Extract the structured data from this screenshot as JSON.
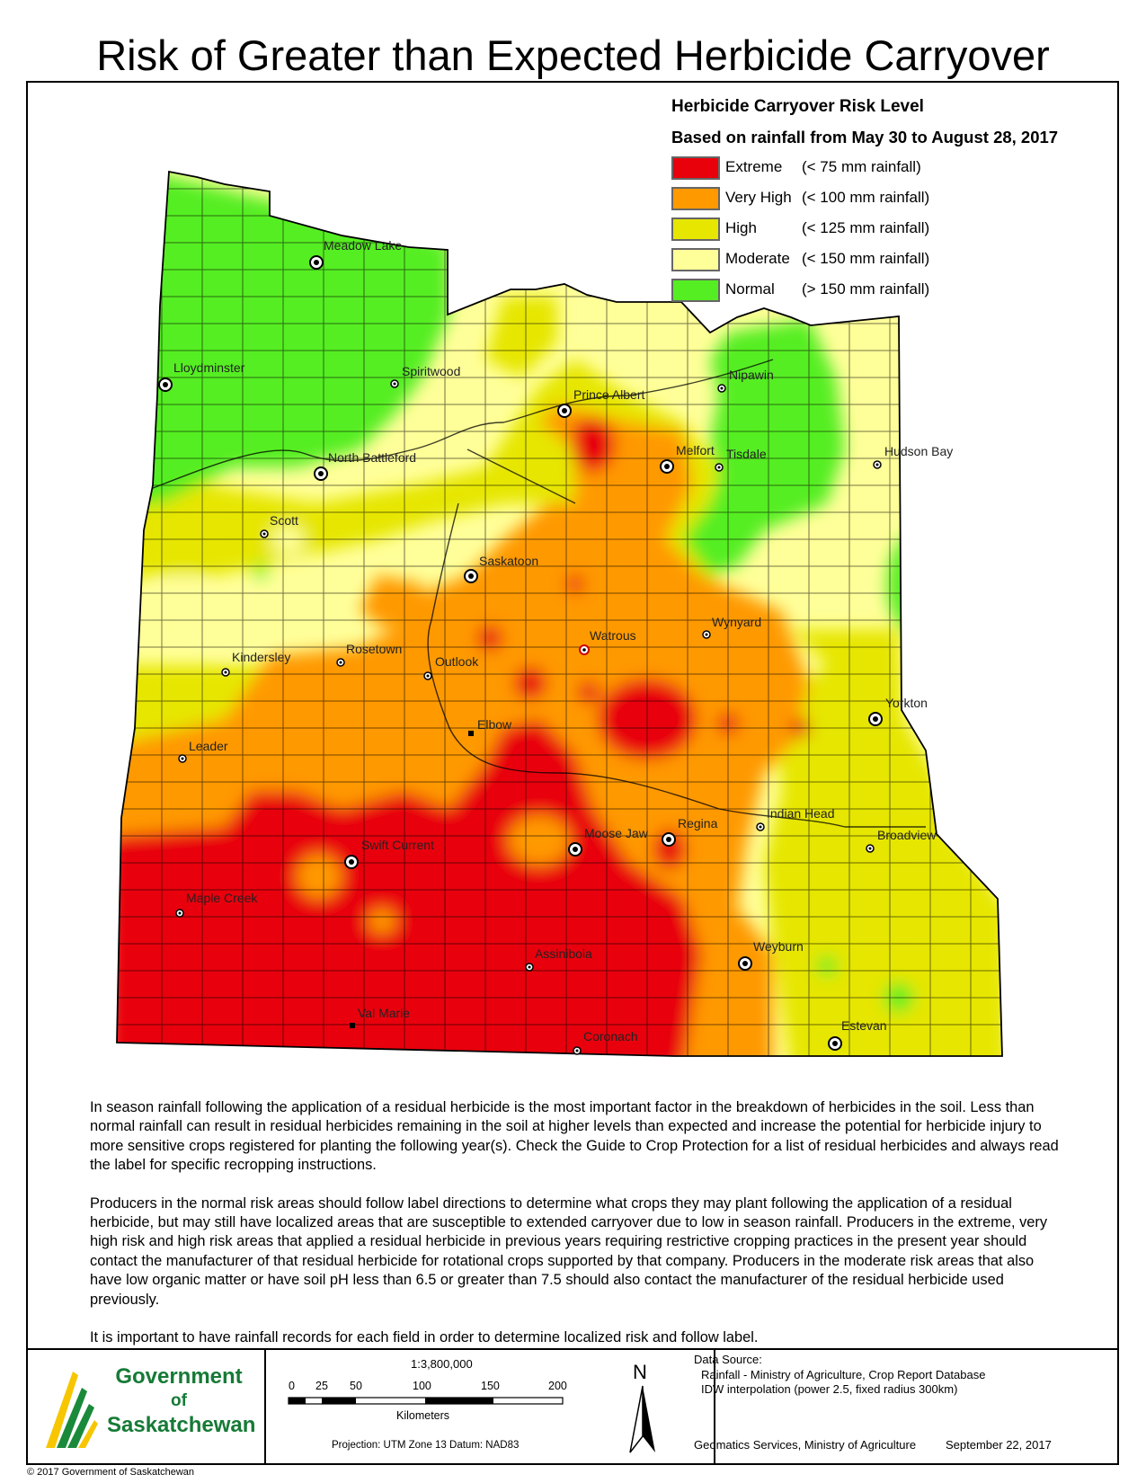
{
  "title": "Risk of Greater than Expected Herbicide Carryover",
  "legend": {
    "title": "Herbicide Carryover Risk Level",
    "subtitle": "Based on rainfall from May 30 to August 28, 2017",
    "items": [
      {
        "name": "Extreme",
        "range": "(<   75 mm rainfall)",
        "color": "#e8000b"
      },
      {
        "name": "Very High",
        "range": "(< 100 mm rainfall)",
        "color": "#ff9900"
      },
      {
        "name": "High",
        "range": "(< 125 mm rainfall)",
        "color": "#e6e600"
      },
      {
        "name": "Moderate",
        "range": "(< 150 mm rainfall)",
        "color": "#ffff99"
      },
      {
        "name": "Normal",
        "range": "(> 150 mm rainfall)",
        "color": "#55ee22"
      }
    ]
  },
  "cities": [
    {
      "name": "Meadow Lake",
      "symbol": "major"
    },
    {
      "name": "Lloydminster",
      "symbol": "major"
    },
    {
      "name": "Spiritwood",
      "symbol": "minor"
    },
    {
      "name": "Prince Albert",
      "symbol": "major"
    },
    {
      "name": "Nipawin",
      "symbol": "minor"
    },
    {
      "name": "Melfort",
      "symbol": "major"
    },
    {
      "name": "Tisdale",
      "symbol": "minor"
    },
    {
      "name": "Hudson Bay",
      "symbol": "minor"
    },
    {
      "name": "North Battleford",
      "symbol": "major"
    },
    {
      "name": "Scott",
      "symbol": "minor"
    },
    {
      "name": "Saskatoon",
      "symbol": "major"
    },
    {
      "name": "Watrous",
      "symbol": "minor"
    },
    {
      "name": "Wynyard",
      "symbol": "minor"
    },
    {
      "name": "Kindersley",
      "symbol": "minor"
    },
    {
      "name": "Rosetown",
      "symbol": "minor"
    },
    {
      "name": "Outlook",
      "symbol": "minor"
    },
    {
      "name": "Yorkton",
      "symbol": "major"
    },
    {
      "name": "Leader",
      "symbol": "minor"
    },
    {
      "name": "Elbow",
      "symbol": "square"
    },
    {
      "name": "Indian Head",
      "symbol": "minor"
    },
    {
      "name": "Regina",
      "symbol": "major"
    },
    {
      "name": "Moose Jaw",
      "symbol": "major"
    },
    {
      "name": "Swift Current",
      "symbol": "major"
    },
    {
      "name": "Broadview",
      "symbol": "minor"
    },
    {
      "name": "Maple Creek",
      "symbol": "minor"
    },
    {
      "name": "Assiniboia",
      "symbol": "minor"
    },
    {
      "name": "Weyburn",
      "symbol": "major"
    },
    {
      "name": "Val Marie",
      "symbol": "square"
    },
    {
      "name": "Estevan",
      "symbol": "major"
    },
    {
      "name": "Coronach",
      "symbol": "minor"
    }
  ],
  "body": {
    "p1": "In season rainfall following the application of a residual herbicide is the most important factor in the breakdown of herbicides in the soil. Less than normal rainfall can result in residual herbicides remaining in the soil at higher levels than expected and increase the potential for herbicide injury to more sensitive crops registered for planting the following year(s). Check the Guide to Crop Protection for a list of residual herbicides and always read the label for specific recropping instructions.",
    "p2": "Producers in the normal risk areas should follow label directions to determine what crops they may plant following the application of a residual herbicide, but may still have localized areas that are susceptible to extended carryover due to low in season rainfall. Producers in the extreme, very high risk and high risk areas that applied a residual herbicide in previous years requiring restrictive cropping practices in the present year should contact the manufacturer of that residual herbicide for rotational crops supported by that company. Producers in the moderate risk areas that also have low organic matter or have soil pH less than 6.5 or greater than 7.5 should also contact the manufacturer of the residual herbicide used previously.",
    "p3": "It is important to have rainfall records for each field in order to determine localized risk and follow label."
  },
  "footer": {
    "logo": {
      "line1": "Government",
      "line2": "of",
      "line3": "Saskatchewan"
    },
    "scale_ratio": "1:3,800,000",
    "scale_ticks": [
      "0",
      "25",
      "50",
      "100",
      "150",
      "200"
    ],
    "scale_unit": "Kilometers",
    "projection": "Projection: UTM Zone 13   Datum: NAD83",
    "north": "N",
    "data_source_title": "Data Source:",
    "data_source_1": "Rainfall - Ministry of Agriculture, Crop Report Database",
    "data_source_2": "IDW interpolation (power 2.5, fixed radius 300km)",
    "credit": "Geomatics Services, Ministry of Agriculture",
    "date": "September 22, 2017"
  },
  "copyright": "© 2017 Government of Saskatchewan"
}
